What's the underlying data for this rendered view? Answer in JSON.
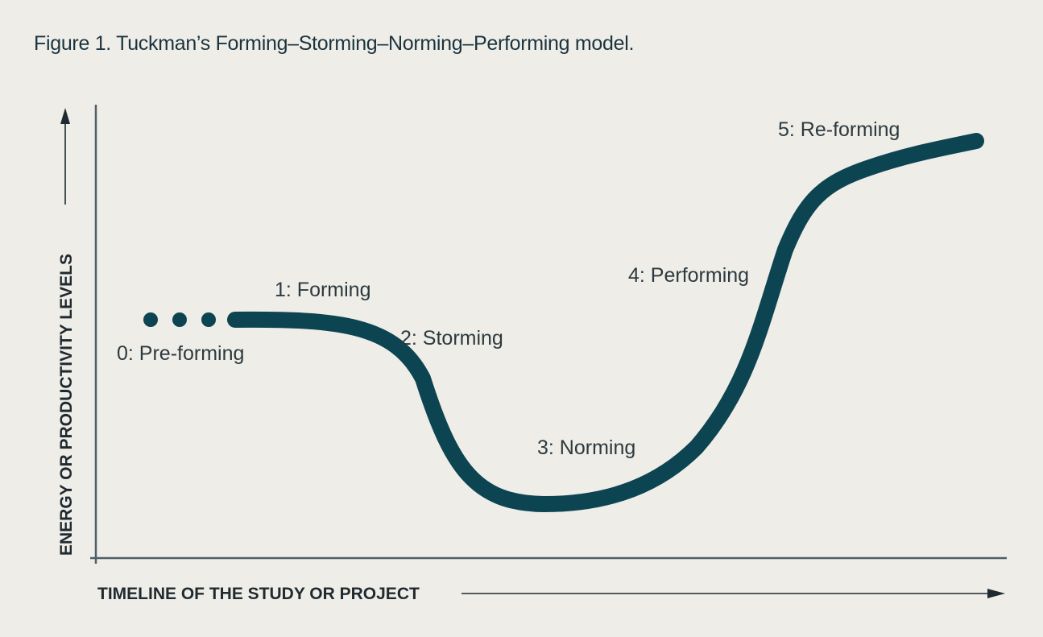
{
  "figure": {
    "title": "Figure 1. Tuckman’s Forming–Storming–Norming–Performing model."
  },
  "axes": {
    "y_label": "ENERGY OR PRODUCTIVITY LEVELS",
    "x_label": "TIMELINE OF THE STUDY OR PROJECT"
  },
  "stages": [
    {
      "id": "pre-forming",
      "label": "0: Pre-forming"
    },
    {
      "id": "forming",
      "label": "1: Forming"
    },
    {
      "id": "storming",
      "label": "2: Storming"
    },
    {
      "id": "norming",
      "label": "3: Norming"
    },
    {
      "id": "performing",
      "label": "4: Performing"
    },
    {
      "id": "re-forming",
      "label": "5: Re-forming"
    }
  ],
  "colors": {
    "background": "#efede7",
    "curve": "#0c4452",
    "axis": "#4d5f69",
    "text": "#2c3a40"
  }
}
